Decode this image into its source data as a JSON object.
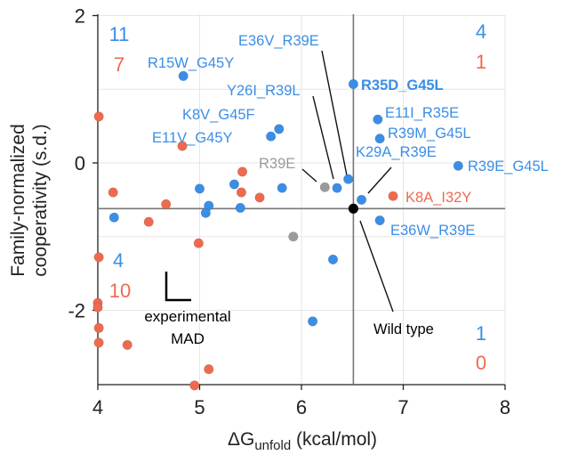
{
  "chart_data": {
    "type": "scatter",
    "xlabel_prefix": "ΔG",
    "xlabel_sub": "unfold",
    "xlabel_suffix": " (kcal/mol)",
    "ylabel_line1": "Family-normalized",
    "ylabel_line2": "cooperativity (s.d.)",
    "xlim": [
      4,
      8
    ],
    "ylim": [
      -3,
      2
    ],
    "xticks": [
      "4",
      "5",
      "6",
      "7",
      "8"
    ],
    "yticks": [
      "2",
      "0",
      "-2"
    ],
    "grid": true,
    "colors": {
      "blue": "#3a8ee6",
      "red": "#ee6a4f",
      "gray": "#9a9a9a",
      "black": "#000000"
    },
    "reference_lines": {
      "x": 6.51,
      "y": -0.62
    },
    "points": [
      {
        "x": 4.84,
        "y": 1.18,
        "color": "blue",
        "label": "R15W_G45Y"
      },
      {
        "x": 6.51,
        "y": 1.07,
        "color": "blue",
        "label": "R35D_G45L",
        "bold": true
      },
      {
        "x": 6.75,
        "y": 0.59,
        "color": "blue",
        "label": "E11I_R35E"
      },
      {
        "x": 6.77,
        "y": 0.33,
        "color": "blue",
        "label": "R39M_G45L"
      },
      {
        "x": 7.54,
        "y": -0.04,
        "color": "blue",
        "label": "R39E_G45L"
      },
      {
        "x": 5.78,
        "y": 0.46,
        "color": "blue",
        "label": "K8V_G45F"
      },
      {
        "x": 5.7,
        "y": 0.36,
        "color": "blue",
        "label": "E11V_G45Y"
      },
      {
        "x": 6.46,
        "y": -0.22,
        "color": "blue",
        "label": "E36V_R39E"
      },
      {
        "x": 6.35,
        "y": -0.34,
        "color": "blue",
        "label": "Y26I_R39L"
      },
      {
        "x": 6.59,
        "y": -0.5,
        "color": "blue",
        "label": "K29A_R39E"
      },
      {
        "x": 6.77,
        "y": -0.78,
        "color": "blue",
        "label": "E36W_R39E"
      },
      {
        "x": 6.23,
        "y": -0.33,
        "color": "gray",
        "label": "R39E"
      },
      {
        "x": 6.9,
        "y": -0.45,
        "color": "red",
        "label": "K8A_I32Y"
      },
      {
        "x": 6.51,
        "y": -0.62,
        "color": "black",
        "label": "Wild type"
      },
      {
        "x": 4.16,
        "y": -0.74,
        "color": "blue"
      },
      {
        "x": 5.0,
        "y": -0.35,
        "color": "blue"
      },
      {
        "x": 5.09,
        "y": -0.58,
        "color": "blue"
      },
      {
        "x": 5.06,
        "y": -0.68,
        "color": "blue"
      },
      {
        "x": 5.34,
        "y": -0.29,
        "color": "blue"
      },
      {
        "x": 5.4,
        "y": -0.61,
        "color": "blue"
      },
      {
        "x": 5.81,
        "y": -0.34,
        "color": "blue"
      },
      {
        "x": 6.31,
        "y": -1.31,
        "color": "blue"
      },
      {
        "x": 6.11,
        "y": -2.15,
        "color": "blue"
      },
      {
        "x": 5.92,
        "y": -1.0,
        "color": "gray"
      },
      {
        "x": 4.01,
        "y": 0.63,
        "color": "red"
      },
      {
        "x": 4.83,
        "y": 0.23,
        "color": "red"
      },
      {
        "x": 5.42,
        "y": -0.12,
        "color": "red"
      },
      {
        "x": 5.41,
        "y": -0.4,
        "color": "red"
      },
      {
        "x": 5.59,
        "y": -0.47,
        "color": "red"
      },
      {
        "x": 4.67,
        "y": -0.56,
        "color": "red"
      },
      {
        "x": 4.15,
        "y": -0.4,
        "color": "red"
      },
      {
        "x": 4.5,
        "y": -0.8,
        "color": "red"
      },
      {
        "x": 4.99,
        "y": -1.09,
        "color": "red"
      },
      {
        "x": 4.01,
        "y": -1.28,
        "color": "red"
      },
      {
        "x": 4.0,
        "y": -1.9,
        "color": "red"
      },
      {
        "x": 4.0,
        "y": -1.96,
        "color": "red"
      },
      {
        "x": 4.01,
        "y": -2.24,
        "color": "red"
      },
      {
        "x": 4.01,
        "y": -2.44,
        "color": "red"
      },
      {
        "x": 4.29,
        "y": -2.47,
        "color": "red"
      },
      {
        "x": 5.09,
        "y": -2.8,
        "color": "red"
      },
      {
        "x": 4.95,
        "y": -3.02,
        "color": "red"
      }
    ],
    "quadrant_counts": {
      "top_left": {
        "blue": "11",
        "red": "7"
      },
      "top_right": {
        "blue": "4",
        "red": "1"
      },
      "bottom_left": {
        "blue": "4",
        "red": "10"
      },
      "bottom_right": {
        "blue": "1",
        "red": "0"
      }
    },
    "mad_annotation": {
      "line1": "experimental",
      "line2": "MAD"
    }
  }
}
